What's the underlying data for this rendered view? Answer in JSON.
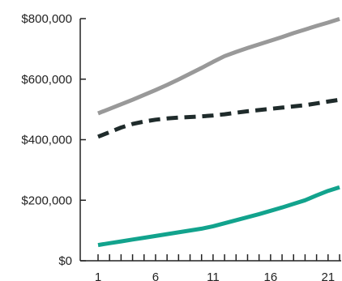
{
  "chart_data": {
    "type": "line",
    "title": "",
    "xlabel": "",
    "ylabel": "",
    "x": [
      1,
      2,
      3,
      4,
      5,
      6,
      7,
      8,
      9,
      10,
      11,
      12,
      13,
      14,
      15,
      16,
      17,
      18,
      19,
      20,
      21,
      22
    ],
    "xlim": [
      1,
      22
    ],
    "ylim": [
      0,
      800000
    ],
    "x_ticks": [
      1,
      6,
      11,
      16,
      21
    ],
    "x_tick_labels": [
      "1",
      "6",
      "11",
      "16",
      "21"
    ],
    "y_ticks": [
      0,
      200000,
      400000,
      600000,
      800000
    ],
    "y_tick_labels": [
      "$0",
      "$200,000",
      "$400,000",
      "$600,000",
      "$800,000"
    ],
    "grid": false,
    "legend": "none",
    "series": [
      {
        "color": "#999999",
        "style": "solid",
        "values": [
          487000,
          502000,
          517000,
          532000,
          548000,
          564000,
          581000,
          599000,
          618000,
          637000,
          657000,
          676000,
          690000,
          703000,
          715000,
          727000,
          739000,
          752000,
          764000,
          776000,
          787000,
          799000
        ]
      },
      {
        "color": "#1f2b2b",
        "style": "dashed",
        "values": [
          410000,
          425000,
          440000,
          452000,
          460000,
          466000,
          470000,
          473000,
          475000,
          477000,
          480000,
          484000,
          489000,
          494000,
          498000,
          502000,
          506000,
          510000,
          514000,
          520000,
          526000,
          532000
        ]
      },
      {
        "color": "#12a38d",
        "style": "solid",
        "values": [
          52000,
          58000,
          64000,
          70000,
          76000,
          82000,
          88000,
          94000,
          100000,
          106000,
          114000,
          124000,
          134000,
          144000,
          154000,
          165000,
          176000,
          188000,
          200000,
          216000,
          231000,
          243000
        ]
      }
    ]
  }
}
